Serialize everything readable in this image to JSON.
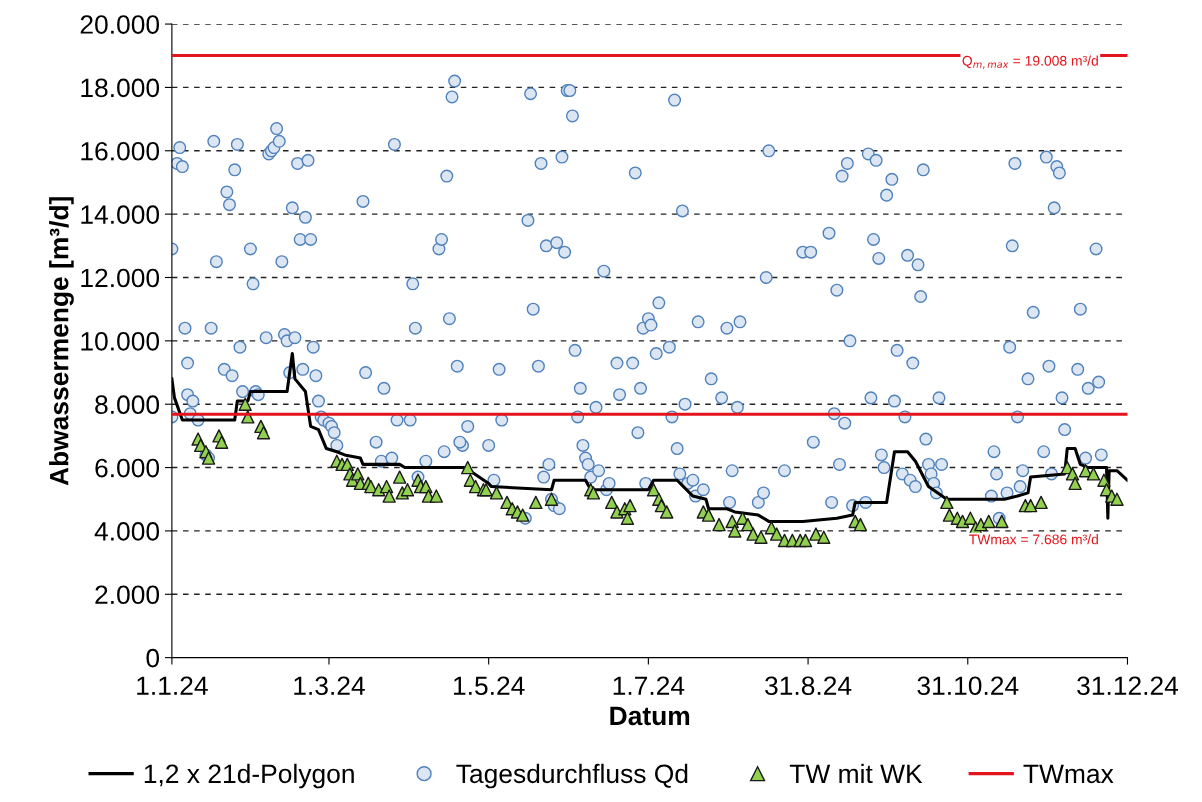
{
  "chart_data": {
    "type": "scatter",
    "xlabel": "Datum",
    "ylabel": "Abwassermenge [m³/d]",
    "xlim": [
      "2024-01-01",
      "2024-12-31"
    ],
    "ylim": [
      0,
      20000
    ],
    "xticks": [
      {
        "value": "2024-01-01",
        "label": "1.1.24"
      },
      {
        "value": "2024-03-01",
        "label": "1.3.24"
      },
      {
        "value": "2024-05-01",
        "label": "1.5.24"
      },
      {
        "value": "2024-07-01",
        "label": "1.7.24"
      },
      {
        "value": "2024-08-31",
        "label": "31.8.24"
      },
      {
        "value": "2024-10-31",
        "label": "31.10.24"
      },
      {
        "value": "2024-12-31",
        "label": "31.12.24"
      }
    ],
    "yticks": [
      0,
      {
        "value": 2000,
        "label": "2.000"
      },
      {
        "value": 4000,
        "label": "4.000"
      },
      {
        "value": 6000,
        "label": "6.000"
      },
      {
        "value": 8000,
        "label": "8.000"
      },
      {
        "value": 10000,
        "label": "10.000"
      },
      {
        "value": 12000,
        "label": "12.000"
      },
      {
        "value": 14000,
        "label": "14.000"
      },
      {
        "value": 16000,
        "label": "16.000"
      },
      {
        "value": 18000,
        "label": "18.000"
      },
      {
        "value": 20000,
        "label": "20.000"
      }
    ],
    "grid": "y",
    "legend": "bottom",
    "ref_lines": [
      {
        "axis": "y",
        "value": 19008,
        "label": "Q$_{m,max}$ = 19.008 m³/d",
        "color": "#e3141b"
      }
    ],
    "annotations": [
      "TWmax = 7.686 m³/d"
    ],
    "series": [
      {
        "name": "1,2 x 21d-Polygon",
        "type": "line",
        "marker": "none",
        "color": "#000000",
        "x": [
          "2024-01-01",
          "2024-01-02",
          "2024-01-05",
          "2024-01-25",
          "2024-01-26",
          "2024-01-30",
          "2024-01-31",
          "2024-02-14",
          "2024-02-16",
          "2024-02-17",
          "2024-02-21",
          "2024-02-23",
          "2024-02-26",
          "2024-02-29",
          "2024-03-04",
          "2024-03-07",
          "2024-03-13",
          "2024-03-14",
          "2024-03-28",
          "2024-03-30",
          "2024-04-22",
          "2024-05-01",
          "2024-05-02",
          "2024-05-25",
          "2024-05-26",
          "2024-06-07",
          "2024-06-09",
          "2024-07-01",
          "2024-07-03",
          "2024-07-12",
          "2024-07-18",
          "2024-07-23",
          "2024-07-24",
          "2024-07-31",
          "2024-08-03",
          "2024-08-12",
          "2024-08-16",
          "2024-08-29",
          "2024-09-11",
          "2024-09-17",
          "2024-09-18",
          "2024-09-30",
          "2024-10-03",
          "2024-10-08",
          "2024-10-11",
          "2024-10-16",
          "2024-10-23",
          "2024-11-14",
          "2024-11-19",
          "2024-11-23",
          "2024-11-24",
          "2024-12-07",
          "2024-12-08",
          "2024-12-11",
          "2024-12-13",
          "2024-12-16",
          "2024-12-23",
          "2024-12-23T12:00",
          "2024-12-24",
          "2024-12-27",
          "2024-12-31"
        ],
        "values": [
          8800,
          8200,
          7500,
          7500,
          8100,
          8100,
          8400,
          8400,
          9600,
          8800,
          8400,
          7300,
          7200,
          6600,
          6500,
          6400,
          6300,
          6100,
          6100,
          6000,
          6000,
          5500,
          5400,
          5300,
          5600,
          5600,
          5300,
          5300,
          5600,
          5600,
          5100,
          5000,
          4700,
          4700,
          4600,
          4500,
          4300,
          4300,
          4400,
          4500,
          4900,
          4900,
          6500,
          6500,
          6200,
          5400,
          5000,
          5000,
          5100,
          5200,
          5700,
          5800,
          6600,
          6600,
          6100,
          6000,
          6000,
          4400,
          5900,
          5900,
          5600
        ]
      },
      {
        "name": "Tagesdurchfluss Qd",
        "marker": "circle",
        "color": "#dce6f2",
        "x": [
          "2024-01-01",
          "2024-01-01",
          "2024-01-03",
          "2024-01-04",
          "2024-01-05",
          "2024-01-06",
          "2024-01-07",
          "2024-01-07",
          "2024-01-09",
          "2024-01-08",
          "2024-01-11",
          "2024-01-14",
          "2024-01-15",
          "2024-01-18",
          "2024-01-16",
          "2024-01-17",
          "2024-01-21",
          "2024-01-22",
          "2024-01-23",
          "2024-01-24",
          "2024-01-26",
          "2024-01-25",
          "2024-01-27",
          "2024-01-28",
          "2024-01-31",
          "2024-02-01",
          "2024-02-02",
          "2024-02-03",
          "2024-02-06",
          "2024-02-07",
          "2024-02-08",
          "2024-02-09",
          "2024-02-10",
          "2024-02-11",
          "2024-02-12",
          "2024-02-13",
          "2024-02-14",
          "2024-02-15",
          "2024-02-16",
          "2024-02-17",
          "2024-02-18",
          "2024-02-19",
          "2024-02-20",
          "2024-02-21",
          "2024-02-22",
          "2024-02-23",
          "2024-02-24",
          "2024-02-25",
          "2024-02-26",
          "2024-02-27",
          "2024-02-28",
          "2024-03-01",
          "2024-03-02",
          "2024-03-03",
          "2024-03-04",
          "2024-03-14",
          "2024-03-15",
          "2024-03-19",
          "2024-03-22",
          "2024-03-21",
          "2024-03-25",
          "2024-03-26",
          "2024-03-27",
          "2024-04-01",
          "2024-04-02",
          "2024-04-03",
          "2024-04-04",
          "2024-04-07",
          "2024-04-12",
          "2024-04-13",
          "2024-04-15",
          "2024-04-16",
          "2024-04-17",
          "2024-04-18",
          "2024-04-19",
          "2024-04-14",
          "2024-04-21",
          "2024-04-23",
          "2024-04-20",
          "2024-05-01",
          "2024-05-03",
          "2024-05-05",
          "2024-05-06",
          "2024-05-15",
          "2024-05-16",
          "2024-05-17",
          "2024-05-18",
          "2024-05-20",
          "2024-05-21",
          "2024-05-22",
          "2024-05-23",
          "2024-05-24",
          "2024-05-25",
          "2024-05-26",
          "2024-05-27",
          "2024-05-28",
          "2024-05-29",
          "2024-05-30",
          "2024-05-31",
          "2024-06-01",
          "2024-06-02",
          "2024-06-03",
          "2024-06-04",
          "2024-06-05",
          "2024-06-06",
          "2024-06-07",
          "2024-06-08",
          "2024-06-09",
          "2024-06-11",
          "2024-06-12",
          "2024-06-14",
          "2024-06-15",
          "2024-06-16",
          "2024-06-19",
          "2024-06-20",
          "2024-06-25",
          "2024-06-26",
          "2024-06-27",
          "2024-06-28",
          "2024-06-29",
          "2024-06-30",
          "2024-07-01",
          "2024-07-02",
          "2024-07-04",
          "2024-07-05",
          "2024-07-09",
          "2024-07-10",
          "2024-07-11",
          "2024-07-12",
          "2024-07-13",
          "2024-07-14",
          "2024-07-15",
          "2024-07-16",
          "2024-07-18",
          "2024-07-19",
          "2024-07-20",
          "2024-07-22",
          "2024-07-25",
          "2024-07-29",
          "2024-07-31",
          "2024-08-01",
          "2024-08-02",
          "2024-08-04",
          "2024-08-05",
          "2024-08-12",
          "2024-08-14",
          "2024-08-15",
          "2024-08-16",
          "2024-08-22",
          "2024-08-29",
          "2024-09-01",
          "2024-09-02",
          "2024-09-08",
          "2024-09-09",
          "2024-09-10",
          "2024-09-11",
          "2024-09-12",
          "2024-09-13",
          "2024-09-14",
          "2024-09-15",
          "2024-09-16",
          "2024-09-17",
          "2024-09-22",
          "2024-09-23",
          "2024-09-24",
          "2024-09-25",
          "2024-09-26",
          "2024-09-27",
          "2024-09-28",
          "2024-09-29",
          "2024-09-30",
          "2024-10-02",
          "2024-10-03",
          "2024-10-04",
          "2024-10-06",
          "2024-10-07",
          "2024-10-08",
          "2024-10-09",
          "2024-10-10",
          "2024-10-11",
          "2024-10-12",
          "2024-10-13",
          "2024-10-14",
          "2024-10-15",
          "2024-10-16",
          "2024-10-17",
          "2024-10-18",
          "2024-10-19",
          "2024-10-20",
          "2024-10-21",
          "2024-11-09",
          "2024-11-10",
          "2024-11-11",
          "2024-11-12",
          "2024-11-15",
          "2024-11-16",
          "2024-11-17",
          "2024-11-18",
          "2024-11-19",
          "2024-11-20",
          "2024-11-21",
          "2024-11-23",
          "2024-11-25",
          "2024-11-29",
          "2024-11-30",
          "2024-12-01",
          "2024-12-02",
          "2024-12-03",
          "2024-12-04",
          "2024-12-05",
          "2024-12-06",
          "2024-12-07",
          "2024-12-12",
          "2024-12-13",
          "2024-12-15",
          "2024-12-16",
          "2024-12-19",
          "2024-12-20",
          "2024-12-21"
        ],
        "values": [
          7600,
          12900,
          15600,
          16100,
          15500,
          10400,
          9300,
          8300,
          8100,
          7700,
          7500,
          6400,
          6300,
          12500,
          10400,
          16300,
          9100,
          14700,
          14300,
          8900,
          16200,
          15400,
          9800,
          8400,
          12900,
          11800,
          8400,
          8300,
          10100,
          15900,
          16000,
          16100,
          16700,
          16300,
          12500,
          10200,
          10000,
          9000,
          14200,
          10100,
          15600,
          13200,
          9100,
          13900,
          15700,
          13200,
          9800,
          8900,
          8100,
          7600,
          7500,
          7400,
          7300,
          7100,
          6700,
          14400,
          9000,
          6800,
          8500,
          6200,
          6300,
          16200,
          7500,
          7500,
          11800,
          10400,
          5700,
          6200,
          12900,
          13200,
          15200,
          10700,
          17700,
          18200,
          9200,
          6500,
          6700,
          7300,
          6800,
          6700,
          5600,
          9100,
          7500,
          4400,
          13800,
          17800,
          11000,
          9200,
          15600,
          5700,
          13000,
          6100,
          5000,
          4800,
          13100,
          4700,
          15800,
          12800,
          17900,
          17900,
          17100,
          9700,
          7600,
          8500,
          6700,
          6300,
          6100,
          5700,
          7900,
          5900,
          12200,
          5300,
          5500,
          9300,
          8300,
          9300,
          15300,
          7100,
          8500,
          10400,
          5500,
          10700,
          10500,
          9600,
          11200,
          9800,
          7600,
          17600,
          6600,
          5800,
          14100,
          8000,
          5500,
          5600,
          5100,
          10600,
          5300,
          8800,
          8200,
          10400,
          4900,
          5900,
          7900,
          10600,
          4900,
          5200,
          12000,
          16000,
          5900,
          12800,
          12800,
          6800,
          13400,
          4900,
          7700,
          11600,
          6100,
          15200,
          7400,
          15600,
          10000,
          4800,
          4900,
          15900,
          8200,
          13200,
          15700,
          12600,
          6400,
          6000,
          14600,
          15100,
          8100,
          9700,
          5800,
          7600,
          12700,
          5600,
          9300,
          5400,
          12400,
          11400,
          15400,
          6900,
          6100,
          5800,
          5500,
          5200,
          8200,
          6100,
          5100,
          6500,
          5800,
          4400,
          5200,
          9800,
          13000,
          15600,
          7600,
          5400,
          5900,
          8800,
          10900,
          6500,
          15800,
          9200,
          5800,
          14200,
          15500,
          15300,
          8200,
          7200,
          9100,
          11000,
          6300,
          8500,
          12900,
          8700,
          6400
        ]
      },
      {
        "name": "TW mit WK",
        "marker": "triangle",
        "color": "#92d050",
        "x": [
          "2024-01-11",
          "2024-01-12",
          "2024-01-14",
          "2024-01-15",
          "2024-01-19",
          "2024-01-20",
          "2024-01-29",
          "2024-01-30",
          "2024-02-04",
          "2024-02-05",
          "2024-03-04",
          "2024-03-06",
          "2024-03-08",
          "2024-03-09",
          "2024-03-10",
          "2024-03-12",
          "2024-03-13",
          "2024-03-16",
          "2024-03-17",
          "2024-03-20",
          "2024-03-23",
          "2024-03-24",
          "2024-03-28",
          "2024-03-29",
          "2024-03-31",
          "2024-04-04",
          "2024-04-05",
          "2024-04-07",
          "2024-04-08",
          "2024-04-11",
          "2024-04-23",
          "2024-04-24",
          "2024-04-26",
          "2024-04-29",
          "2024-04-30",
          "2024-05-04",
          "2024-05-08",
          "2024-05-10",
          "2024-05-12",
          "2024-05-14",
          "2024-05-19",
          "2024-05-25",
          "2024-06-09",
          "2024-06-10",
          "2024-06-17",
          "2024-06-19",
          "2024-06-22",
          "2024-06-23",
          "2024-06-24",
          "2024-07-03",
          "2024-07-05",
          "2024-07-06",
          "2024-07-08",
          "2024-07-22",
          "2024-07-24",
          "2024-07-28",
          "2024-08-02",
          "2024-08-03",
          "2024-08-06",
          "2024-08-08",
          "2024-08-10",
          "2024-08-13",
          "2024-08-17",
          "2024-08-19",
          "2024-08-22",
          "2024-08-25",
          "2024-08-28",
          "2024-08-30",
          "2024-09-03",
          "2024-09-06",
          "2024-09-18",
          "2024-09-20",
          "2024-10-23",
          "2024-10-24",
          "2024-10-27",
          "2024-10-29",
          "2024-11-01",
          "2024-11-03",
          "2024-11-05",
          "2024-11-08",
          "2024-11-13",
          "2024-11-22",
          "2024-11-24",
          "2024-11-28",
          "2024-12-08",
          "2024-12-10",
          "2024-12-11",
          "2024-12-15",
          "2024-12-18",
          "2024-12-22",
          "2024-12-23",
          "2024-12-25",
          "2024-12-27"
        ],
        "values": [
          6900,
          6700,
          6500,
          6300,
          7000,
          6800,
          8000,
          7600,
          7300,
          7100,
          6200,
          6100,
          6100,
          5800,
          5600,
          5800,
          5500,
          5500,
          5400,
          5300,
          5400,
          5100,
          5700,
          5200,
          5300,
          5600,
          5400,
          5400,
          5100,
          5100,
          6000,
          5600,
          5400,
          5300,
          5300,
          5200,
          4900,
          4700,
          4600,
          4500,
          4900,
          5000,
          5300,
          5200,
          4900,
          4600,
          4700,
          4400,
          4800,
          5300,
          5000,
          4800,
          4600,
          4600,
          4500,
          4200,
          4300,
          4000,
          4400,
          4200,
          3900,
          3800,
          4100,
          3900,
          3700,
          3700,
          3700,
          3700,
          3900,
          3800,
          4300,
          4200,
          4900,
          4500,
          4400,
          4300,
          4400,
          4100,
          4200,
          4300,
          4300,
          4800,
          4800,
          4900,
          6000,
          5800,
          5500,
          5900,
          5800,
          5600,
          5300,
          5100,
          5000
        ]
      },
      {
        "name": "TWmax",
        "type": "line",
        "marker": "none",
        "color": "#e3141b",
        "x": [
          "2024-01-01",
          "2024-12-31"
        ],
        "values": [
          7686,
          7686
        ]
      }
    ]
  }
}
